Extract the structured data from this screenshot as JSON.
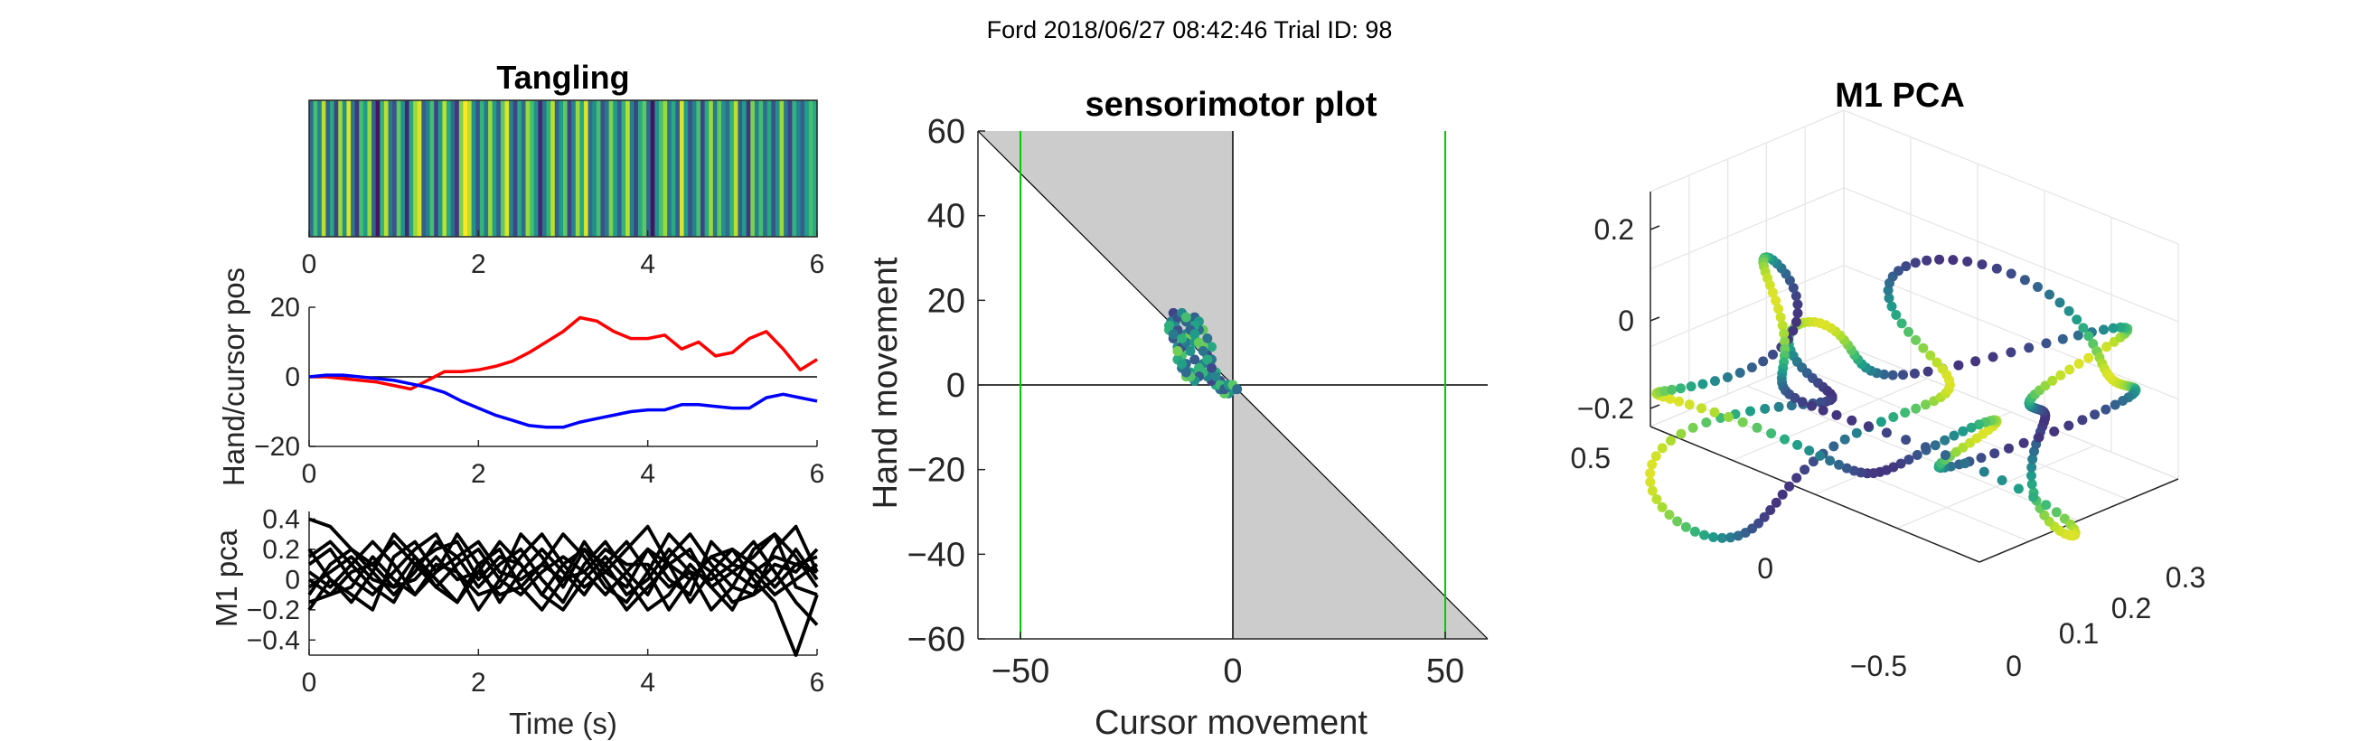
{
  "suptitle": "Ford 2018/06/27 08:42:46 Trial ID: 98",
  "colors": {
    "axis": "#262626",
    "cursor_trace": "#ff0000",
    "hand_trace": "#0000ff",
    "pca_trace": "#000000",
    "shade": "#cccccc",
    "bound": "#00cc00",
    "grid3d": "#e6e6e6"
  },
  "chart_data": [
    {
      "id": "tangling",
      "type": "heatmap",
      "title": "Tangling",
      "colormap": "viridis",
      "xlim": [
        0,
        6
      ],
      "xticks": [
        0,
        2,
        4,
        6
      ],
      "values": [
        0.35,
        0.7,
        0.45,
        0.9,
        0.3,
        0.6,
        0.2,
        0.85,
        0.5,
        0.95,
        0.4,
        0.15,
        0.7,
        0.55,
        0.85,
        0.3,
        0.05,
        0.65,
        0.9,
        0.4,
        0.25,
        0.75,
        0.5,
        0.1,
        0.6,
        0.85,
        0.95,
        0.3,
        0.45,
        0.7,
        0.2,
        0.55,
        0.9,
        0.6,
        0.35,
        0.15,
        0.8,
        1.0,
        0.9,
        0.5,
        0.25,
        0.65,
        0.4,
        0.85,
        0.55,
        0.3,
        0.75,
        0.95,
        0.45,
        0.2,
        0.6,
        0.35,
        0.85,
        0.7,
        0.5,
        0.1,
        0.4,
        0.65,
        0.9,
        0.3,
        0.55,
        0.75,
        0.2,
        0.45,
        0.85,
        0.6,
        0.95,
        0.35,
        0.5,
        0.7,
        0.25,
        0.4,
        0.8,
        0.55,
        0.3,
        0.65,
        0.9,
        0.45,
        0.2,
        0.6,
        0.75,
        0.35,
        0.05,
        0.5,
        0.7,
        0.85,
        0.4,
        0.6,
        0.3,
        0.95,
        0.55,
        0.25,
        0.45,
        0.7,
        0.2,
        0.6,
        0.85,
        0.4,
        0.75,
        0.5,
        0.35,
        0.65,
        0.9,
        0.3,
        0.55,
        0.15,
        0.8,
        0.45,
        0.7,
        0.35,
        0.6,
        0.25,
        0.5,
        0.85,
        0.4,
        0.2,
        0.65,
        0.45,
        0.3,
        0.55,
        0.7,
        0.6
      ]
    },
    {
      "id": "hand-cursor",
      "type": "line",
      "title": "",
      "xlabel": "",
      "ylabel": "Hand/cursor pos",
      "xlim": [
        0,
        6
      ],
      "ylim": [
        -20,
        20
      ],
      "xticks": [
        0,
        2,
        4,
        6
      ],
      "yticks": [
        -20,
        0,
        20
      ],
      "zero_line": true,
      "x": [
        0,
        0.2,
        0.4,
        0.6,
        0.8,
        1.0,
        1.2,
        1.4,
        1.6,
        1.8,
        2.0,
        2.2,
        2.4,
        2.6,
        2.8,
        3.0,
        3.2,
        3.4,
        3.6,
        3.8,
        4.0,
        4.2,
        4.4,
        4.6,
        4.8,
        5.0,
        5.2,
        5.4,
        5.6,
        5.8,
        6.0
      ],
      "series": [
        {
          "key": "cursor",
          "values": [
            0,
            0,
            -0.5,
            -1,
            -1.5,
            -2.5,
            -3.5,
            -1,
            1.5,
            1.5,
            2,
            3,
            4.5,
            7,
            10,
            13,
            17,
            16,
            13,
            11,
            11,
            12,
            8,
            10,
            6,
            7,
            11,
            13,
            8,
            2,
            5
          ]
        },
        {
          "key": "hand",
          "values": [
            0,
            0.5,
            0.5,
            0,
            -0.5,
            -1,
            -2,
            -3,
            -4.5,
            -7,
            -9,
            -11,
            -12.5,
            -14,
            -14.5,
            -14.5,
            -13,
            -12,
            -11,
            -10,
            -9.5,
            -9.5,
            -8,
            -8,
            -8.5,
            -9,
            -9,
            -6,
            -5,
            -6,
            -7
          ]
        }
      ]
    },
    {
      "id": "m1-pca-traces",
      "type": "line",
      "title": "",
      "xlabel": "Time (s)",
      "ylabel": "M1 pca",
      "xlim": [
        0,
        6
      ],
      "ylim": [
        -0.5,
        0.45
      ],
      "xticks": [
        0,
        2,
        4,
        6
      ],
      "yticks": [
        -0.4,
        -0.2,
        0,
        0.2,
        0.4
      ],
      "x": [
        0,
        0.25,
        0.5,
        0.75,
        1.0,
        1.25,
        1.5,
        1.75,
        2.0,
        2.25,
        2.5,
        2.75,
        3.0,
        3.25,
        3.5,
        3.75,
        4.0,
        4.25,
        4.5,
        4.75,
        5.0,
        5.25,
        5.5,
        5.75,
        6.0
      ],
      "series": [
        {
          "values": [
            0.4,
            0.35,
            0.2,
            0.1,
            0.25,
            0.1,
            -0.05,
            0.1,
            0.2,
            0,
            -0.1,
            0.05,
            0.15,
            0.05,
            -0.1,
            0.05,
            0.2,
            0.1,
            0,
            0.15,
            0.05,
            -0.05,
            0.1,
            0.05,
            0.2
          ]
        },
        {
          "values": [
            -0.1,
            0.1,
            0.2,
            0.05,
            -0.1,
            0.05,
            0.25,
            0.15,
            -0.05,
            0.1,
            0.2,
            0,
            -0.15,
            0.1,
            0.25,
            0.05,
            -0.1,
            0.15,
            0.3,
            0.1,
            -0.05,
            0.2,
            0.3,
            -0.05,
            -0.1
          ]
        },
        {
          "values": [
            0.05,
            -0.05,
            0.1,
            0.25,
            0.1,
            -0.1,
            0.05,
            0.3,
            0.1,
            -0.15,
            0.05,
            0.2,
            0.05,
            -0.1,
            0.1,
            0.25,
            0.05,
            -0.2,
            0,
            0.15,
            0.2,
            0,
            -0.15,
            -0.5,
            -0.1
          ]
        },
        {
          "values": [
            -0.2,
            0,
            -0.15,
            0.05,
            0.3,
            0.15,
            0,
            -0.15,
            0.05,
            0.25,
            0.1,
            -0.1,
            -0.2,
            0,
            0.15,
            0,
            -0.2,
            -0.1,
            0.1,
            -0.05,
            -0.2,
            0.05,
            0.15,
            0.1,
            0.05
          ]
        },
        {
          "values": [
            0.1,
            0.2,
            0,
            -0.1,
            0.05,
            0.2,
            0.3,
            0.05,
            -0.1,
            -0.05,
            0.15,
            0.3,
            0.1,
            -0.05,
            0.05,
            0.2,
            0.35,
            0.1,
            -0.15,
            0.05,
            0.2,
            0.1,
            -0.05,
            0.1,
            0.15
          ]
        },
        {
          "values": [
            0,
            -0.1,
            -0.05,
            0.15,
            0,
            -0.1,
            0.1,
            0.05,
            -0.2,
            0,
            0.3,
            0.15,
            -0.05,
            0.2,
            0.1,
            -0.1,
            0,
            0.2,
            0.05,
            -0.2,
            -0.05,
            -0.1,
            0,
            0.2,
            0
          ]
        },
        {
          "values": [
            -0.05,
            0.05,
            0.15,
            0,
            -0.05,
            0.15,
            -0.05,
            -0.15,
            0.1,
            0.2,
            -0.05,
            -0.2,
            0,
            0.25,
            0.05,
            -0.05,
            0.2,
            0,
            -0.1,
            0.25,
            0.1,
            0.25,
            0.05,
            -0.15,
            -0.3
          ]
        },
        {
          "values": [
            0.2,
            0,
            -0.1,
            -0.2,
            0.15,
            0.25,
            0.05,
            0.15,
            0.25,
            0.05,
            0,
            0.1,
            0.3,
            0.15,
            -0.05,
            -0.15,
            0.05,
            0.3,
            0.15,
            0.05,
            -0.15,
            -0.1,
            0.2,
            0.35,
            0.05
          ]
        },
        {
          "values": [
            -0.15,
            -0.1,
            0.05,
            0.1,
            -0.05,
            0,
            0.15,
            0,
            0.05,
            -0.1,
            -0.05,
            0.1,
            0,
            0.05,
            0.2,
            0.1,
            0.1,
            -0.05,
            0.05,
            0,
            0.1,
            0.05,
            -0.1,
            0,
            0.1
          ]
        },
        {
          "values": [
            0.15,
            0.25,
            0.1,
            -0.05,
            -0.15,
            0.1,
            0.2,
            0.25,
            0,
            0.15,
            0.1,
            -0.1,
            0.1,
            0.2,
            0,
            -0.2,
            -0.05,
            0.1,
            0.2,
            -0.05,
            0.05,
            0.15,
            0.3,
            0.15,
            -0.05
          ]
        }
      ]
    },
    {
      "id": "sensorimotor",
      "type": "scatter",
      "title": "sensorimotor plot",
      "xlabel": "Cursor movement",
      "ylabel": "Hand movement",
      "xlim": [
        -60,
        60
      ],
      "ylim": [
        -60,
        60
      ],
      "xticks": [
        -50,
        0,
        50
      ],
      "yticks": [
        -60,
        -40,
        -20,
        0,
        20,
        40,
        60
      ],
      "bounds_x": [
        -50,
        50
      ],
      "points": [
        [
          -14,
          17
        ],
        [
          -14.5,
          15
        ],
        [
          -15,
          13
        ],
        [
          -14,
          11
        ],
        [
          -13,
          9
        ],
        [
          -12,
          7
        ],
        [
          -11,
          5
        ],
        [
          -10,
          3
        ],
        [
          -11,
          2
        ],
        [
          -12,
          4
        ],
        [
          -13,
          6
        ],
        [
          -12,
          9
        ],
        [
          -11,
          12
        ],
        [
          -10,
          14
        ],
        [
          -9,
          16
        ],
        [
          -8,
          15
        ],
        [
          -7,
          13
        ],
        [
          -6,
          11
        ],
        [
          -5,
          9
        ],
        [
          -6,
          7
        ],
        [
          -7,
          5
        ],
        [
          -8,
          4
        ],
        [
          -9,
          6
        ],
        [
          -10,
          8
        ],
        [
          -9,
          11
        ],
        [
          -8,
          13
        ],
        [
          -9,
          14
        ],
        [
          -10,
          12
        ],
        [
          -11,
          10
        ],
        [
          -12,
          11
        ],
        [
          -13,
          13
        ],
        [
          -13.5,
          15
        ],
        [
          -12.5,
          16
        ],
        [
          -11,
          15
        ],
        [
          -9,
          10
        ],
        [
          -7,
          9
        ],
        [
          -5,
          6
        ],
        [
          -4,
          3
        ],
        [
          -3,
          1
        ],
        [
          -2,
          0
        ],
        [
          -1,
          -1
        ],
        [
          0,
          -1
        ],
        [
          -1,
          -2
        ],
        [
          -2,
          -2
        ],
        [
          -3,
          -1
        ],
        [
          -4,
          0
        ],
        [
          -5,
          1
        ],
        [
          -6,
          2
        ],
        [
          -7,
          3
        ],
        [
          -8,
          2
        ],
        [
          -9,
          1
        ],
        [
          -10,
          2
        ],
        [
          -11,
          3
        ],
        [
          -12,
          5
        ],
        [
          -13,
          8
        ],
        [
          -14,
          12
        ],
        [
          -15,
          14
        ],
        [
          -13,
          16
        ],
        [
          -12,
          17
        ],
        [
          -11,
          16
        ],
        [
          -10,
          13
        ],
        [
          -9,
          12
        ],
        [
          -8,
          10
        ],
        [
          -7,
          8
        ],
        [
          -6,
          6
        ],
        [
          -5,
          4
        ],
        [
          -4,
          2
        ],
        [
          -3,
          0
        ],
        [
          -2,
          -1
        ],
        [
          -1,
          0
        ],
        [
          0,
          0
        ],
        [
          1,
          -1
        ]
      ],
      "colormap": "viridis"
    },
    {
      "id": "m1-pca-3d",
      "type": "scatter",
      "title": "M1 PCA",
      "projection": "3d",
      "zticks": [
        -0.2,
        0,
        0.2
      ],
      "yticks": [
        -0.5,
        0,
        0.5
      ],
      "xticks": [
        0,
        0.1,
        0.2,
        0.3
      ],
      "colormap": "viridis",
      "n_points": 360
    }
  ]
}
